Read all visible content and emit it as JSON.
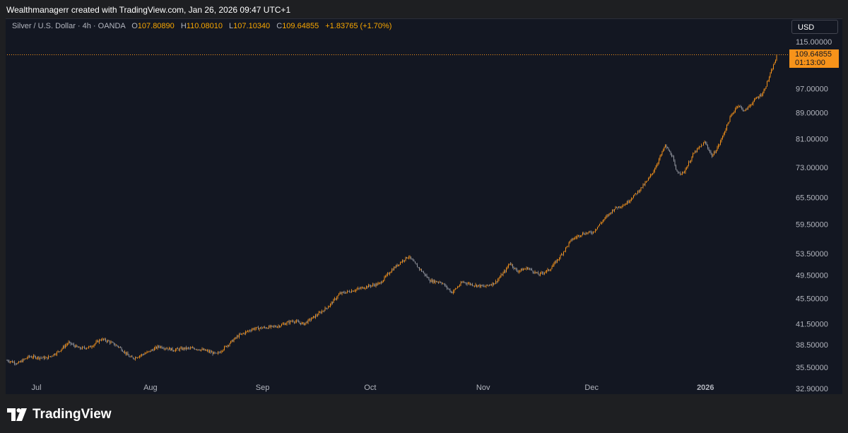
{
  "header": {
    "attribution": "Wealthmanagerr created with TradingView.com, Jan 26, 2026 09:47 UTC+1"
  },
  "legend": {
    "symbol": "Silver / U.S. Dollar · 4h · OANDA",
    "open_label": "O",
    "open": "107.80890",
    "high_label": "H",
    "high": "110.08010",
    "low_label": "L",
    "low": "107.10340",
    "close_label": "C",
    "close": "109.64855",
    "change": "+1.83765 (+1.70%)"
  },
  "currency": "USD",
  "last_price": {
    "price": "109.64855",
    "countdown": "01:13:00"
  },
  "footer": {
    "brand": "TradingView"
  },
  "colors": {
    "candle": "#f7931a",
    "candle_down": "#9598a1",
    "background": "#131722",
    "accent": "#f7931a"
  },
  "chart_data": {
    "type": "candlestick",
    "title": "Silver / U.S. Dollar · 4h · OANDA",
    "yscale": "log",
    "ylim": [
      31.0,
      120.0
    ],
    "y_ticks": [
      115,
      97,
      89,
      81,
      73,
      65.5,
      59.5,
      53.5,
      49.5,
      45.5,
      41.5,
      38.5,
      35.5,
      32.9
    ],
    "y_tick_labels": [
      "115.00000",
      "97.00000",
      "89.00000",
      "81.00000",
      "73.00000",
      "65.50000",
      "59.50000",
      "53.50000",
      "49.50000",
      "45.50000",
      "41.50000",
      "38.50000",
      "35.50000",
      "32.90000"
    ],
    "x_labels": [
      {
        "text": "Jul",
        "date": "2025-07-01",
        "bold": false
      },
      {
        "text": "Aug",
        "date": "2025-08-01",
        "bold": false
      },
      {
        "text": "Sep",
        "date": "2025-09-01",
        "bold": false
      },
      {
        "text": "Oct",
        "date": "2025-10-01",
        "bold": false
      },
      {
        "text": "Nov",
        "date": "2025-11-01",
        "bold": false
      },
      {
        "text": "Dec",
        "date": "2025-12-01",
        "bold": false
      },
      {
        "text": "2026",
        "date": "2026-01-01",
        "bold": true
      }
    ],
    "x_range": [
      "2025-06-27",
      "2026-01-26"
    ],
    "series": [
      {
        "values": [
          {
            "date": "2025-06-27",
            "close": 36.4
          },
          {
            "date": "2025-06-30",
            "close": 36.0
          },
          {
            "date": "2025-07-03",
            "close": 36.9
          },
          {
            "date": "2025-07-08",
            "close": 36.7
          },
          {
            "date": "2025-07-11",
            "close": 37.5
          },
          {
            "date": "2025-07-14",
            "close": 38.8
          },
          {
            "date": "2025-07-17",
            "close": 38.0
          },
          {
            "date": "2025-07-20",
            "close": 38.2
          },
          {
            "date": "2025-07-23",
            "close": 39.3
          },
          {
            "date": "2025-07-25",
            "close": 39.0
          },
          {
            "date": "2025-07-28",
            "close": 38.2
          },
          {
            "date": "2025-07-31",
            "close": 36.8
          },
          {
            "date": "2025-08-01",
            "close": 36.7
          },
          {
            "date": "2025-08-05",
            "close": 37.5
          },
          {
            "date": "2025-08-08",
            "close": 38.3
          },
          {
            "date": "2025-08-12",
            "close": 37.8
          },
          {
            "date": "2025-08-15",
            "close": 38.0
          },
          {
            "date": "2025-08-18",
            "close": 38.0
          },
          {
            "date": "2025-08-21",
            "close": 37.7
          },
          {
            "date": "2025-08-24",
            "close": 37.2
          },
          {
            "date": "2025-08-27",
            "close": 38.5
          },
          {
            "date": "2025-08-30",
            "close": 39.8
          },
          {
            "date": "2025-09-03",
            "close": 40.8
          },
          {
            "date": "2025-09-07",
            "close": 41.0
          },
          {
            "date": "2025-09-10",
            "close": 41.2
          },
          {
            "date": "2025-09-14",
            "close": 42.0
          },
          {
            "date": "2025-09-17",
            "close": 41.5
          },
          {
            "date": "2025-09-21",
            "close": 43.0
          },
          {
            "date": "2025-09-24",
            "close": 44.3
          },
          {
            "date": "2025-09-27",
            "close": 46.3
          },
          {
            "date": "2025-10-01",
            "close": 46.9
          },
          {
            "date": "2025-10-05",
            "close": 47.6
          },
          {
            "date": "2025-10-08",
            "close": 48.0
          },
          {
            "date": "2025-10-11",
            "close": 50.2
          },
          {
            "date": "2025-10-14",
            "close": 52.0
          },
          {
            "date": "2025-10-16",
            "close": 53.0
          },
          {
            "date": "2025-10-18",
            "close": 51.4
          },
          {
            "date": "2025-10-20",
            "close": 50.0
          },
          {
            "date": "2025-10-22",
            "close": 48.5
          },
          {
            "date": "2025-10-25",
            "close": 48.3
          },
          {
            "date": "2025-10-28",
            "close": 46.5
          },
          {
            "date": "2025-10-31",
            "close": 48.3
          },
          {
            "date": "2025-11-03",
            "close": 47.8
          },
          {
            "date": "2025-11-06",
            "close": 47.5
          },
          {
            "date": "2025-11-09",
            "close": 48.2
          },
          {
            "date": "2025-11-12",
            "close": 50.5
          },
          {
            "date": "2025-11-13",
            "close": 51.8
          },
          {
            "date": "2025-11-15",
            "close": 50.2
          },
          {
            "date": "2025-11-18",
            "close": 50.8
          },
          {
            "date": "2025-11-21",
            "close": 49.6
          },
          {
            "date": "2025-11-24",
            "close": 50.5
          },
          {
            "date": "2025-11-27",
            "close": 53.0
          },
          {
            "date": "2025-11-30",
            "close": 56.2
          },
          {
            "date": "2025-12-03",
            "close": 57.5
          },
          {
            "date": "2025-12-06",
            "close": 57.8
          },
          {
            "date": "2025-12-09",
            "close": 60.5
          },
          {
            "date": "2025-12-12",
            "close": 63.0
          },
          {
            "date": "2025-12-15",
            "close": 64.0
          },
          {
            "date": "2025-12-18",
            "close": 66.5
          },
          {
            "date": "2025-12-21",
            "close": 69.5
          },
          {
            "date": "2025-12-23",
            "close": 72.5
          },
          {
            "date": "2025-12-26",
            "close": 79.0
          },
          {
            "date": "2025-12-28",
            "close": 76.0
          },
          {
            "date": "2025-12-29",
            "close": 72.0
          },
          {
            "date": "2025-12-31",
            "close": 71.5
          },
          {
            "date": "2026-01-03",
            "close": 77.0
          },
          {
            "date": "2026-01-06",
            "close": 80.0
          },
          {
            "date": "2026-01-08",
            "close": 76.0
          },
          {
            "date": "2026-01-10",
            "close": 79.5
          },
          {
            "date": "2026-01-13",
            "close": 87.5
          },
          {
            "date": "2026-01-15",
            "close": 91.5
          },
          {
            "date": "2026-01-17",
            "close": 89.5
          },
          {
            "date": "2026-01-20",
            "close": 93.5
          },
          {
            "date": "2026-01-22",
            "close": 95.5
          },
          {
            "date": "2026-01-24",
            "close": 102.0
          },
          {
            "date": "2026-01-26",
            "close": 109.6
          }
        ]
      }
    ],
    "last_value": 109.64855
  }
}
